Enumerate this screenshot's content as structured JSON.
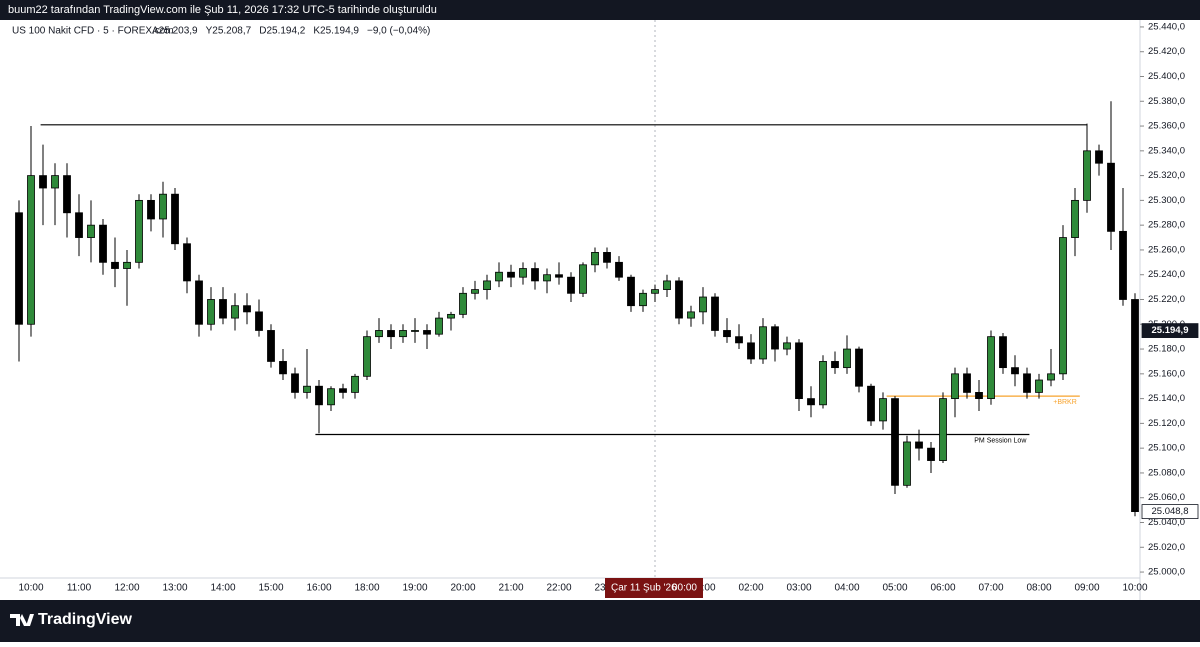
{
  "header": {
    "caption": "buum22 tarafından TradingView.com ile Şub 11, 2026 17:32 UTC-5 tarihinde oluşturuldu",
    "symbol": "US 100 Nakit CFD · 5 · FOREX.com",
    "quote": [
      "A25.203,9",
      "Y25.208,7",
      "D25.194,2",
      "K25.194,9",
      "−9,0 (−0,04%)"
    ]
  },
  "footer": {
    "brand": "TradingView"
  },
  "chart_data": {
    "type": "candlestick",
    "categories": [
      null,
      "10:00",
      null,
      null,
      null,
      "11:00",
      null,
      null,
      null,
      "12:00",
      null,
      null,
      null,
      "13:00",
      null,
      null,
      null,
      "14:00",
      null,
      null,
      null,
      "15:00",
      null,
      null,
      null,
      "16:00",
      null,
      null,
      null,
      "18:00",
      null,
      null,
      null,
      "19:00",
      null,
      null,
      null,
      "20:00",
      null,
      null,
      null,
      "21:00",
      null,
      null,
      null,
      "22:00",
      null,
      null,
      null,
      "23:00",
      null,
      null,
      null,
      null,
      null,
      null,
      null,
      "01:00",
      null,
      null,
      null,
      "02:00",
      null,
      null,
      null,
      "03:00",
      null,
      null,
      null,
      "04:00",
      null,
      null,
      null,
      "05:00",
      null,
      null,
      null,
      "06:00",
      null,
      null,
      null,
      "07:00",
      null,
      null,
      null,
      "08:00",
      null,
      null,
      null,
      "09:00",
      null,
      null,
      null,
      "10:00"
    ],
    "open": [
      25290,
      25200,
      25320,
      25310,
      25320,
      25290,
      25270,
      25280,
      25250,
      25245,
      25250,
      25300,
      25285,
      25305,
      25265,
      25235,
      25200,
      25220,
      25205,
      25215,
      25210,
      25195,
      25170,
      25160,
      25145,
      25150,
      25135,
      25148,
      25145,
      25158,
      25190,
      25195,
      25190,
      25195,
      25195,
      25192,
      25205,
      25208,
      25225,
      25228,
      25235,
      25242,
      25238,
      25245,
      25235,
      25240,
      25238,
      25225,
      25248,
      25258,
      25250,
      25238,
      25215,
      25225,
      25228,
      25235,
      25205,
      25210,
      25222,
      25195,
      25190,
      25185,
      25172,
      25198,
      25180,
      25185,
      25140,
      25135,
      25170,
      25165,
      25180,
      25150,
      25122,
      25140,
      25070,
      25105,
      25100,
      25090,
      25140,
      25160,
      25145,
      25140,
      25190,
      25165,
      25160,
      25145,
      25155,
      25160,
      25270,
      25300,
      25340,
      25330,
      25275,
      25220
    ],
    "high": [
      25300,
      25360,
      25345,
      25330,
      25330,
      25305,
      25300,
      25285,
      25270,
      25260,
      25305,
      25305,
      25315,
      25310,
      25270,
      25240,
      25230,
      25230,
      25225,
      25225,
      25220,
      25200,
      25180,
      25165,
      25180,
      25155,
      25150,
      25152,
      25160,
      25195,
      25205,
      25200,
      25200,
      25205,
      25200,
      25210,
      25210,
      25230,
      25235,
      25240,
      25250,
      25248,
      25250,
      25250,
      25245,
      25250,
      25242,
      25250,
      25262,
      25262,
      25255,
      25240,
      25228,
      25232,
      25240,
      25238,
      25215,
      25230,
      25225,
      25205,
      25200,
      25192,
      25205,
      25200,
      25190,
      25188,
      25150,
      25175,
      25178,
      25191,
      25182,
      25152,
      25145,
      25142,
      25110,
      25115,
      25105,
      25145,
      25165,
      25165,
      25155,
      25195,
      25193,
      25175,
      25165,
      25160,
      25180,
      25280,
      25310,
      25362,
      25345,
      25380,
      25310,
      25225
    ],
    "low": [
      25170,
      25190,
      25280,
      25280,
      25270,
      25255,
      25250,
      25240,
      25230,
      25215,
      25245,
      25275,
      25270,
      25260,
      25225,
      25190,
      25195,
      25200,
      25195,
      25200,
      25190,
      25165,
      25155,
      25140,
      25140,
      25112,
      25130,
      25140,
      25140,
      25155,
      25185,
      25180,
      25185,
      25185,
      25180,
      25190,
      25195,
      25205,
      25220,
      25220,
      25230,
      25230,
      25232,
      25228,
      25225,
      25232,
      25218,
      25222,
      25242,
      25245,
      25235,
      25210,
      25210,
      25218,
      25222,
      25200,
      25198,
      25200,
      25190,
      25185,
      25180,
      25168,
      25168,
      25170,
      25175,
      25130,
      25125,
      25132,
      25160,
      25160,
      25145,
      25118,
      25115,
      25063,
      25068,
      25090,
      25080,
      25088,
      25125,
      25140,
      25130,
      25135,
      25160,
      25150,
      25140,
      25140,
      25150,
      25155,
      25255,
      25290,
      25320,
      25260,
      25215,
      25045
    ],
    "close": [
      25200,
      25320,
      25310,
      25320,
      25290,
      25270,
      25280,
      25250,
      25245,
      25250,
      25300,
      25285,
      25305,
      25265,
      25235,
      25200,
      25220,
      25205,
      25215,
      25210,
      25195,
      25170,
      25160,
      25145,
      25150,
      25135,
      25148,
      25145,
      25158,
      25190,
      25195,
      25190,
      25195,
      25195,
      25192,
      25205,
      25208,
      25225,
      25228,
      25235,
      25242,
      25238,
      25245,
      25235,
      25240,
      25238,
      25225,
      25248,
      25258,
      25250,
      25238,
      25215,
      25225,
      25228,
      25235,
      25205,
      25210,
      25222,
      25195,
      25190,
      25185,
      25172,
      25198,
      25180,
      25185,
      25140,
      25135,
      25170,
      25165,
      25180,
      25150,
      25122,
      25140,
      25070,
      25105,
      25100,
      25090,
      25140,
      25160,
      25145,
      25140,
      25190,
      25165,
      25160,
      25145,
      25155,
      25160,
      25270,
      25300,
      25340,
      25330,
      25275,
      25220,
      25048.8
    ],
    "up_color": "#2f8a3a",
    "down_color": "#000000",
    "ylim": [
      24995.2,
      25445.6
    ],
    "yticks": [
      {
        "value": 25000,
        "label": "25.000,0"
      },
      {
        "value": 25020,
        "label": "25.020,0"
      },
      {
        "value": 25040,
        "label": "25.040,0"
      },
      {
        "value": 25060,
        "label": "25.060,0"
      },
      {
        "value": 25080,
        "label": "25.080,0"
      },
      {
        "value": 25100,
        "label": "25.100,0"
      },
      {
        "value": 25120,
        "label": "25.120,0"
      },
      {
        "value": 25140,
        "label": "25.140,0"
      },
      {
        "value": 25160,
        "label": "25.160,0"
      },
      {
        "value": 25180,
        "label": "25.180,0"
      },
      {
        "value": 25200,
        "label": "25.200,0"
      },
      {
        "value": 25220,
        "label": "25.220,0"
      },
      {
        "value": 25240,
        "label": "25.240,0"
      },
      {
        "value": 25260,
        "label": "25.260,0"
      },
      {
        "value": 25280,
        "label": "25.280,0"
      },
      {
        "value": 25300,
        "label": "25.300,0"
      },
      {
        "value": 25320,
        "label": "25.320,0"
      },
      {
        "value": 25340,
        "label": "25.340,0"
      },
      {
        "value": 25360,
        "label": "25.360,0"
      },
      {
        "value": 25380,
        "label": "25.380,0"
      },
      {
        "value": 25400,
        "label": "25.400,0"
      },
      {
        "value": 25420,
        "label": "25.420,0"
      },
      {
        "value": 25440,
        "label": "25.440,0"
      }
    ],
    "levels": [
      {
        "value": 25361,
        "color": "#000000"
      },
      {
        "value": 25111,
        "label": "PM Session Low",
        "color": "#000000"
      },
      {
        "value": 25142,
        "label": "+BRKR",
        "color": "#f7a32d"
      }
    ],
    "price_labels": [
      {
        "value": 25194.9,
        "label": "25.194,9",
        "style": "dark"
      },
      {
        "value": 25048.8,
        "label": "25.048,8",
        "style": "light"
      }
    ],
    "crosshair": {
      "date": "Çar 11 Şub '26",
      "time": "00:00"
    }
  }
}
